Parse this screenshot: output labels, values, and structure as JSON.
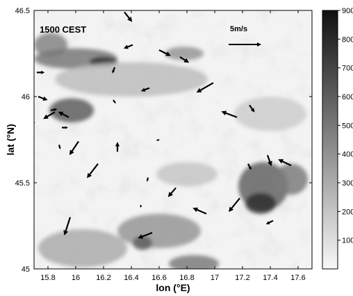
{
  "panel_label": "1500 CEST",
  "scale": {
    "label": "5m/s",
    "speed": 5
  },
  "axes": {
    "xlabel": "lon (°E)",
    "ylabel": "lat (°N)",
    "xlim": [
      15.7,
      17.7
    ],
    "ylim": [
      45.0,
      46.5
    ],
    "xticks": [
      15.8,
      16,
      16.2,
      16.4,
      16.6,
      16.8,
      17,
      17.2,
      17.4,
      17.6
    ],
    "xtick_labels": [
      "15.8",
      "16",
      "16.2",
      "16.4",
      "16.6",
      "16.8",
      "17",
      "17.2",
      "17.4",
      "17.6"
    ],
    "yticks": [
      45.0,
      45.5,
      46.0,
      46.5
    ],
    "ytick_labels": [
      "45",
      "45.5",
      "46",
      "46.5"
    ]
  },
  "colorbar": {
    "min": 0,
    "max": 900,
    "ticks": [
      100,
      200,
      300,
      400,
      500,
      600,
      700,
      800,
      900
    ],
    "tick_labels": [
      "100",
      "200",
      "300",
      "400",
      "500",
      "600",
      "700",
      "800",
      "900"
    ],
    "color_low": "#f8f8f8",
    "color_high": "#111111"
  },
  "terrain": [
    {
      "lon": 15.82,
      "lat": 46.3,
      "rlon": 0.12,
      "rlat": 0.07,
      "elev": 450
    },
    {
      "lon": 16.0,
      "lat": 46.22,
      "rlon": 0.3,
      "rlat": 0.06,
      "elev": 500
    },
    {
      "lon": 16.2,
      "lat": 46.2,
      "rlon": 0.1,
      "rlat": 0.03,
      "elev": 780
    },
    {
      "lon": 15.97,
      "lat": 45.92,
      "rlon": 0.16,
      "rlat": 0.07,
      "elev": 600
    },
    {
      "lon": 16.78,
      "lat": 46.25,
      "rlon": 0.14,
      "rlat": 0.04,
      "elev": 380
    },
    {
      "lon": 16.4,
      "lat": 46.1,
      "rlon": 0.55,
      "rlat": 0.1,
      "elev": 230
    },
    {
      "lon": 17.35,
      "lat": 45.48,
      "rlon": 0.18,
      "rlat": 0.14,
      "elev": 580
    },
    {
      "lon": 17.33,
      "lat": 45.38,
      "rlon": 0.11,
      "rlat": 0.06,
      "elev": 780
    },
    {
      "lon": 17.55,
      "lat": 45.52,
      "rlon": 0.12,
      "rlat": 0.09,
      "elev": 480
    },
    {
      "lon": 16.6,
      "lat": 45.22,
      "rlon": 0.3,
      "rlat": 0.1,
      "elev": 380
    },
    {
      "lon": 16.48,
      "lat": 45.15,
      "rlon": 0.07,
      "rlat": 0.04,
      "elev": 600
    },
    {
      "lon": 16.85,
      "lat": 45.03,
      "rlon": 0.18,
      "rlat": 0.05,
      "elev": 480
    },
    {
      "lon": 16.05,
      "lat": 45.12,
      "rlon": 0.32,
      "rlat": 0.11,
      "elev": 300
    },
    {
      "lon": 16.8,
      "lat": 45.55,
      "rlon": 0.22,
      "rlat": 0.07,
      "elev": 200
    },
    {
      "lon": 17.4,
      "lat": 45.9,
      "rlon": 0.26,
      "rlat": 0.1,
      "elev": 170
    }
  ],
  "wind_vectors": [
    {
      "lon": 16.35,
      "lat": 46.49,
      "u": 1.2,
      "v": -1.5
    },
    {
      "lon": 16.41,
      "lat": 46.3,
      "u": -1.4,
      "v": -0.55
    },
    {
      "lon": 16.6,
      "lat": 46.27,
      "u": 1.8,
      "v": -0.9
    },
    {
      "lon": 16.75,
      "lat": 46.23,
      "u": 1.4,
      "v": -0.9
    },
    {
      "lon": 16.28,
      "lat": 46.17,
      "u": -0.35,
      "v": -0.95
    },
    {
      "lon": 15.72,
      "lat": 46.14,
      "u": 1.2,
      "v": 0.0
    },
    {
      "lon": 16.53,
      "lat": 46.05,
      "u": -1.3,
      "v": -0.5
    },
    {
      "lon": 16.99,
      "lat": 46.08,
      "u": -2.6,
      "v": -1.5
    },
    {
      "lon": 17.16,
      "lat": 45.88,
      "u": -2.4,
      "v": 0.9
    },
    {
      "lon": 17.25,
      "lat": 45.95,
      "u": 0.8,
      "v": -1.1
    },
    {
      "lon": 15.73,
      "lat": 46.0,
      "u": 1.45,
      "v": -0.55
    },
    {
      "lon": 15.85,
      "lat": 45.91,
      "u": -1.8,
      "v": -1.05
    },
    {
      "lon": 15.95,
      "lat": 45.88,
      "u": -1.65,
      "v": 0.85
    },
    {
      "lon": 15.82,
      "lat": 45.92,
      "u": 1.0,
      "v": 0.2
    },
    {
      "lon": 15.9,
      "lat": 45.82,
      "u": 0.95,
      "v": 0.0
    },
    {
      "lon": 15.65,
      "lat": 45.85,
      "u": 1.25,
      "v": 0.0
    },
    {
      "lon": 16.27,
      "lat": 45.98,
      "u": 0.4,
      "v": -0.55
    },
    {
      "lon": 16.3,
      "lat": 45.68,
      "u": 0.0,
      "v": 1.5
    },
    {
      "lon": 16.6,
      "lat": 45.75,
      "u": -0.45,
      "v": -0.15
    },
    {
      "lon": 15.88,
      "lat": 45.72,
      "u": 0.2,
      "v": -0.7
    },
    {
      "lon": 16.02,
      "lat": 45.74,
      "u": -1.4,
      "v": -2.1
    },
    {
      "lon": 16.16,
      "lat": 45.61,
      "u": -1.7,
      "v": -2.2
    },
    {
      "lon": 17.24,
      "lat": 45.61,
      "u": 0.5,
      "v": -0.95
    },
    {
      "lon": 17.55,
      "lat": 45.6,
      "u": -2.0,
      "v": 0.95
    },
    {
      "lon": 17.38,
      "lat": 45.66,
      "u": 0.6,
      "v": -1.7
    },
    {
      "lon": 16.52,
      "lat": 45.53,
      "u": -0.15,
      "v": -0.65
    },
    {
      "lon": 16.72,
      "lat": 45.47,
      "u": -1.2,
      "v": -1.4
    },
    {
      "lon": 16.94,
      "lat": 45.32,
      "u": -2.1,
      "v": 0.9
    },
    {
      "lon": 17.18,
      "lat": 45.41,
      "u": -1.7,
      "v": -2.1
    },
    {
      "lon": 17.42,
      "lat": 45.28,
      "u": -1.1,
      "v": -0.55
    },
    {
      "lon": 16.47,
      "lat": 45.37,
      "u": -0.1,
      "v": -0.4
    },
    {
      "lon": 15.96,
      "lat": 45.3,
      "u": -0.9,
      "v": -2.8
    },
    {
      "lon": 16.55,
      "lat": 45.21,
      "u": -2.2,
      "v": -0.85
    }
  ]
}
